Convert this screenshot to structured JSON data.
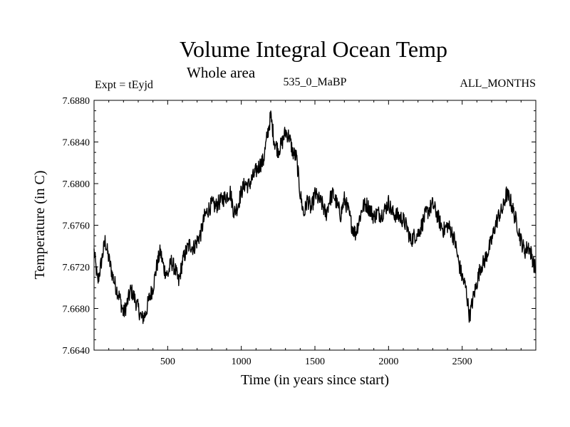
{
  "chart_data": {
    "type": "line",
    "title": "Volume Integral Ocean Temp",
    "subtitle": "Whole area",
    "experiment_label": "Expt = tEyjd",
    "period_label": "535_0_MaBP",
    "months_label": "ALL_MONTHS",
    "xlabel": "Time (in years since start)",
    "ylabel": "Temperature (in C)",
    "xlim": [
      0,
      3000
    ],
    "ylim": [
      7.664,
      7.688
    ],
    "x_ticks": [
      500,
      1000,
      1500,
      2000,
      2500
    ],
    "y_ticks": [
      "7.6640",
      "7.6680",
      "7.6720",
      "7.6760",
      "7.6800",
      "7.6840",
      "7.6880"
    ],
    "grid": false,
    "series": [
      {
        "name": "Volume Integral Ocean Temp",
        "x": [
          0,
          25,
          50,
          75,
          100,
          125,
          150,
          175,
          200,
          225,
          250,
          275,
          300,
          325,
          350,
          375,
          400,
          425,
          450,
          475,
          500,
          525,
          550,
          575,
          600,
          625,
          650,
          675,
          700,
          725,
          750,
          775,
          800,
          825,
          850,
          875,
          900,
          925,
          950,
          975,
          1000,
          1025,
          1050,
          1075,
          1100,
          1125,
          1150,
          1175,
          1200,
          1225,
          1250,
          1275,
          1300,
          1325,
          1350,
          1375,
          1400,
          1425,
          1450,
          1475,
          1500,
          1525,
          1550,
          1575,
          1600,
          1625,
          1650,
          1675,
          1700,
          1725,
          1750,
          1775,
          1800,
          1825,
          1850,
          1875,
          1900,
          1925,
          1950,
          1975,
          2000,
          2025,
          2050,
          2075,
          2100,
          2125,
          2150,
          2175,
          2200,
          2225,
          2250,
          2275,
          2300,
          2325,
          2350,
          2375,
          2400,
          2425,
          2450,
          2475,
          2500,
          2525,
          2550,
          2575,
          2600,
          2625,
          2650,
          2675,
          2700,
          2725,
          2750,
          2775,
          2800,
          2825,
          2850,
          2875,
          2900,
          2925,
          2950,
          2975,
          3000
        ],
        "values": [
          7.6735,
          7.6705,
          7.6725,
          7.6745,
          7.6728,
          7.6712,
          7.67,
          7.669,
          7.6675,
          7.6685,
          7.6698,
          7.669,
          7.668,
          7.667,
          7.6675,
          7.669,
          7.67,
          7.672,
          7.6735,
          7.6718,
          7.6712,
          7.6725,
          7.6718,
          7.6705,
          7.6725,
          7.6735,
          7.6742,
          7.6738,
          7.6745,
          7.6752,
          7.6768,
          7.6775,
          7.678,
          7.6778,
          7.6782,
          7.6785,
          7.6788,
          7.6792,
          7.6772,
          7.6778,
          7.6792,
          7.68,
          7.6798,
          7.6805,
          7.6812,
          7.6818,
          7.6822,
          7.6845,
          7.6865,
          7.684,
          7.6832,
          7.6838,
          7.685,
          7.6845,
          7.683,
          7.6825,
          7.679,
          7.677,
          7.6785,
          7.6775,
          7.679,
          7.6785,
          7.678,
          7.677,
          7.6785,
          7.679,
          7.678,
          7.677,
          7.6785,
          7.6775,
          7.676,
          7.6752,
          7.6765,
          7.6778,
          7.678,
          7.6775,
          7.6768,
          7.6772,
          7.677,
          7.6775,
          7.6782,
          7.6772,
          7.677,
          7.6768,
          7.6765,
          7.6758,
          7.6745,
          7.675,
          7.6752,
          7.676,
          7.677,
          7.6775,
          7.678,
          7.6772,
          7.6762,
          7.6755,
          7.676,
          7.6755,
          7.6745,
          7.6725,
          7.671,
          7.67,
          7.6672,
          7.669,
          7.6705,
          7.672,
          7.6725,
          7.6735,
          7.6745,
          7.676,
          7.677,
          7.6775,
          7.679,
          7.6785,
          7.6772,
          7.676,
          7.6745,
          7.6735,
          7.674,
          7.673,
          7.6715
        ]
      }
    ]
  }
}
